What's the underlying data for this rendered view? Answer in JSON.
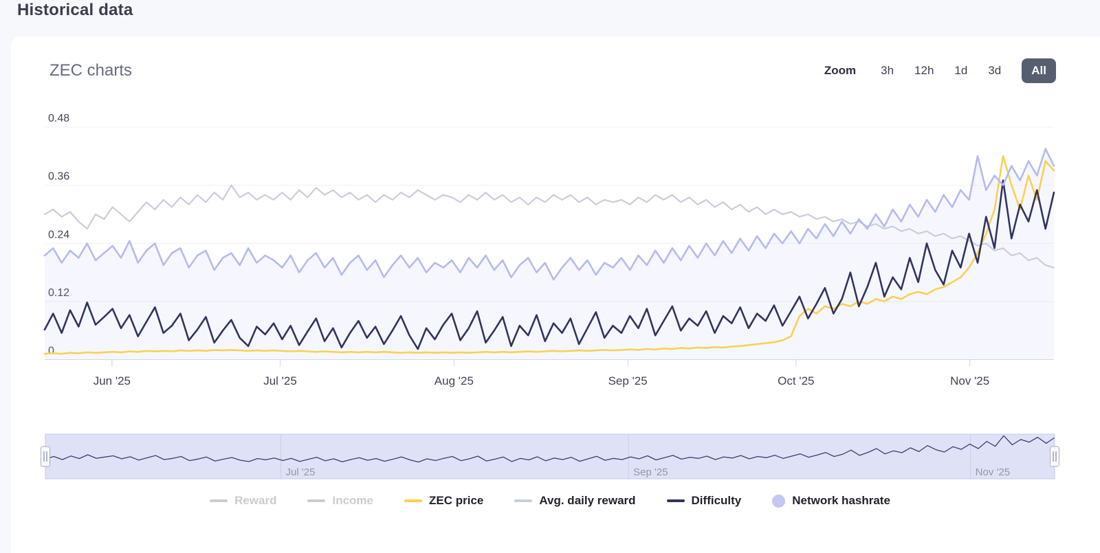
{
  "page": {
    "title": "Historical data"
  },
  "card": {
    "title": "ZEC charts",
    "zoom": {
      "label": "Zoom",
      "options": [
        {
          "label": "3h",
          "selected": false
        },
        {
          "label": "12h",
          "selected": false
        },
        {
          "label": "1d",
          "selected": false
        },
        {
          "label": "3d",
          "selected": false
        },
        {
          "label": "All",
          "selected": true
        }
      ]
    }
  },
  "legend": {
    "items": [
      {
        "label": "Reward",
        "marker": "line",
        "color": "#cccccc",
        "disabled": true
      },
      {
        "label": "Income",
        "marker": "line",
        "color": "#cccccc",
        "disabled": true
      },
      {
        "label": "ZEC price",
        "marker": "line",
        "color": "#fbd052",
        "disabled": false
      },
      {
        "label": "Avg. daily reward",
        "marker": "line",
        "color": "#c9cdda",
        "disabled": false
      },
      {
        "label": "Difficulty",
        "marker": "line",
        "color": "#31345e",
        "disabled": false
      },
      {
        "label": "Network hashrate",
        "marker": "circle",
        "color": "#c3c7f4",
        "disabled": false
      }
    ]
  },
  "chart_data": {
    "type": "line",
    "title": "ZEC charts",
    "xlabel": "",
    "ylabel": "",
    "ylim": [
      0,
      0.48
    ],
    "grid": true,
    "legend_position": "bottom",
    "x_domain_days": 180,
    "yticks": [
      {
        "value": 0,
        "label": "0"
      },
      {
        "value": 0.12,
        "label": "0.12"
      },
      {
        "value": 0.24,
        "label": "0.24"
      },
      {
        "value": 0.36,
        "label": "0.36"
      },
      {
        "value": 0.48,
        "label": "0.48"
      }
    ],
    "xticks": [
      {
        "label": "Jun '25",
        "day": 12
      },
      {
        "label": "Jul '25",
        "day": 42
      },
      {
        "label": "Aug '25",
        "day": 73
      },
      {
        "label": "Sep '25",
        "day": 104
      },
      {
        "label": "Oct '25",
        "day": 134
      },
      {
        "label": "Nov '25",
        "day": 165
      }
    ],
    "navigator": {
      "series": "Difficulty",
      "line_color": "#3a3d6e",
      "background": "#dfe2f7",
      "ticks": [
        {
          "label": "Jul '25",
          "day": 42
        },
        {
          "label": "Sep '25",
          "day": 104
        },
        {
          "label": "Nov '25",
          "day": 165
        }
      ]
    },
    "series": [
      {
        "name": "Reward",
        "color": "#cccccc",
        "width": 2,
        "visible": false,
        "values": []
      },
      {
        "name": "Income",
        "color": "#cccccc",
        "width": 2,
        "visible": false,
        "values": []
      },
      {
        "name": "ZEC price",
        "color": "#fbd052",
        "width": 2.6,
        "visible": true,
        "values": [
          0.012,
          0.013,
          0.012,
          0.014,
          0.013,
          0.015,
          0.014,
          0.015,
          0.016,
          0.015,
          0.017,
          0.016,
          0.018,
          0.017,
          0.018,
          0.017,
          0.019,
          0.018,
          0.019,
          0.018,
          0.02,
          0.019,
          0.02,
          0.019,
          0.018,
          0.019,
          0.018,
          0.019,
          0.018,
          0.017,
          0.018,
          0.017,
          0.016,
          0.017,
          0.016,
          0.015,
          0.016,
          0.015,
          0.016,
          0.015,
          0.016,
          0.015,
          0.014,
          0.015,
          0.014,
          0.015,
          0.014,
          0.015,
          0.014,
          0.015,
          0.014,
          0.015,
          0.016,
          0.015,
          0.016,
          0.015,
          0.016,
          0.017,
          0.016,
          0.017,
          0.018,
          0.017,
          0.018,
          0.019,
          0.018,
          0.019,
          0.02,
          0.019,
          0.02,
          0.021,
          0.02,
          0.022,
          0.021,
          0.023,
          0.022,
          0.024,
          0.023,
          0.025,
          0.024,
          0.026,
          0.025,
          0.027,
          0.028,
          0.03,
          0.032,
          0.034,
          0.036,
          0.04,
          0.048,
          0.09,
          0.105,
          0.095,
          0.11,
          0.105,
          0.115,
          0.11,
          0.12,
          0.115,
          0.125,
          0.12,
          0.13,
          0.125,
          0.135,
          0.14,
          0.135,
          0.145,
          0.15,
          0.16,
          0.17,
          0.19,
          0.22,
          0.26,
          0.31,
          0.42,
          0.36,
          0.31,
          0.38,
          0.33,
          0.41,
          0.39
        ]
      },
      {
        "name": "Avg. daily reward",
        "color": "#c9cdda",
        "width": 2.2,
        "visible": true,
        "values": [
          0.3,
          0.31,
          0.295,
          0.305,
          0.285,
          0.27,
          0.3,
          0.29,
          0.315,
          0.3,
          0.285,
          0.305,
          0.325,
          0.31,
          0.33,
          0.315,
          0.335,
          0.32,
          0.34,
          0.325,
          0.345,
          0.33,
          0.36,
          0.335,
          0.345,
          0.33,
          0.34,
          0.33,
          0.345,
          0.33,
          0.35,
          0.335,
          0.355,
          0.34,
          0.35,
          0.335,
          0.345,
          0.33,
          0.34,
          0.325,
          0.34,
          0.33,
          0.345,
          0.335,
          0.35,
          0.34,
          0.33,
          0.34,
          0.335,
          0.325,
          0.34,
          0.33,
          0.345,
          0.33,
          0.34,
          0.325,
          0.335,
          0.32,
          0.335,
          0.325,
          0.34,
          0.33,
          0.34,
          0.325,
          0.335,
          0.32,
          0.33,
          0.325,
          0.33,
          0.32,
          0.335,
          0.325,
          0.34,
          0.33,
          0.34,
          0.325,
          0.335,
          0.32,
          0.33,
          0.315,
          0.325,
          0.31,
          0.32,
          0.305,
          0.315,
          0.3,
          0.31,
          0.3,
          0.305,
          0.295,
          0.3,
          0.29,
          0.295,
          0.285,
          0.29,
          0.28,
          0.285,
          0.275,
          0.28,
          0.27,
          0.275,
          0.265,
          0.27,
          0.26,
          0.265,
          0.255,
          0.26,
          0.25,
          0.255,
          0.245,
          0.235,
          0.24,
          0.225,
          0.23,
          0.215,
          0.22,
          0.205,
          0.21,
          0.195,
          0.19
        ]
      },
      {
        "name": "Difficulty",
        "color": "#31345e",
        "width": 2.6,
        "visible": true,
        "values": [
          0.062,
          0.095,
          0.055,
          0.102,
          0.068,
          0.118,
          0.072,
          0.088,
          0.105,
          0.065,
          0.092,
          0.048,
          0.078,
          0.108,
          0.055,
          0.07,
          0.095,
          0.04,
          0.062,
          0.088,
          0.035,
          0.06,
          0.082,
          0.045,
          0.028,
          0.068,
          0.052,
          0.075,
          0.042,
          0.07,
          0.03,
          0.058,
          0.085,
          0.038,
          0.065,
          0.025,
          0.055,
          0.08,
          0.045,
          0.068,
          0.032,
          0.06,
          0.09,
          0.05,
          0.022,
          0.065,
          0.042,
          0.072,
          0.095,
          0.04,
          0.065,
          0.1,
          0.035,
          0.06,
          0.088,
          0.028,
          0.07,
          0.05,
          0.092,
          0.038,
          0.075,
          0.055,
          0.085,
          0.032,
          0.065,
          0.098,
          0.045,
          0.07,
          0.055,
          0.09,
          0.065,
          0.105,
          0.05,
          0.08,
          0.11,
          0.06,
          0.085,
          0.07,
          0.1,
          0.055,
          0.09,
          0.075,
          0.108,
          0.065,
          0.095,
          0.08,
          0.112,
          0.07,
          0.1,
          0.13,
          0.085,
          0.115,
          0.148,
          0.095,
          0.125,
          0.18,
          0.11,
          0.15,
          0.2,
          0.13,
          0.17,
          0.145,
          0.21,
          0.16,
          0.24,
          0.185,
          0.155,
          0.225,
          0.19,
          0.26,
          0.2,
          0.295,
          0.23,
          0.37,
          0.25,
          0.32,
          0.285,
          0.35,
          0.27,
          0.345
        ]
      },
      {
        "name": "Network hashrate",
        "color": "#b5baf1",
        "width": 2.6,
        "visible": true,
        "type": "area",
        "area_fill": "rgba(185,190,244,0.13)",
        "values": [
          0.215,
          0.23,
          0.2,
          0.225,
          0.21,
          0.24,
          0.205,
          0.22,
          0.235,
          0.21,
          0.245,
          0.2,
          0.225,
          0.24,
          0.195,
          0.22,
          0.23,
          0.19,
          0.215,
          0.225,
          0.185,
          0.21,
          0.22,
          0.195,
          0.23,
          0.2,
          0.215,
          0.205,
          0.19,
          0.215,
          0.18,
          0.205,
          0.22,
          0.19,
          0.21,
          0.175,
          0.2,
          0.215,
          0.185,
          0.205,
          0.17,
          0.195,
          0.215,
          0.19,
          0.21,
          0.18,
          0.2,
          0.19,
          0.205,
          0.18,
          0.21,
          0.19,
          0.215,
          0.185,
          0.205,
          0.17,
          0.195,
          0.21,
          0.18,
          0.2,
          0.165,
          0.19,
          0.21,
          0.185,
          0.205,
          0.175,
          0.2,
          0.19,
          0.21,
          0.185,
          0.215,
          0.195,
          0.225,
          0.2,
          0.23,
          0.205,
          0.235,
          0.21,
          0.24,
          0.215,
          0.245,
          0.22,
          0.25,
          0.225,
          0.255,
          0.23,
          0.26,
          0.24,
          0.265,
          0.24,
          0.27,
          0.25,
          0.28,
          0.255,
          0.285,
          0.26,
          0.29,
          0.27,
          0.3,
          0.275,
          0.31,
          0.285,
          0.32,
          0.295,
          0.33,
          0.305,
          0.34,
          0.315,
          0.35,
          0.33,
          0.42,
          0.35,
          0.38,
          0.36,
          0.4,
          0.37,
          0.41,
          0.38,
          0.435,
          0.4
        ]
      }
    ]
  }
}
